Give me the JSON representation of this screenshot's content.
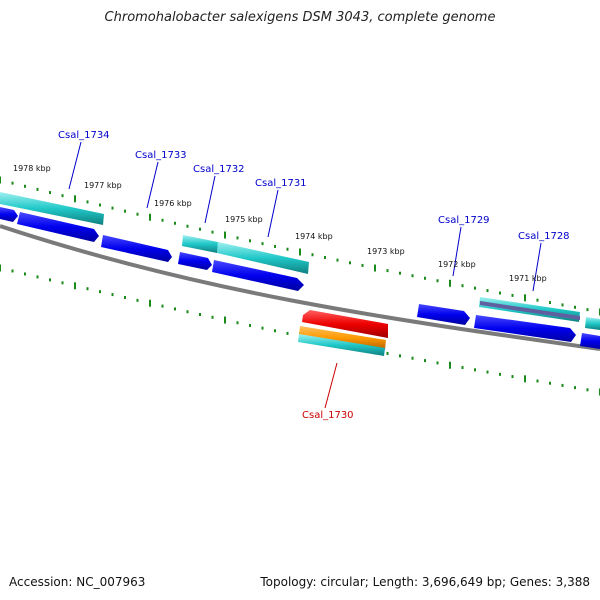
{
  "title": "Chromohalobacter salexigens DSM 3043, complete genome",
  "footer": {
    "accession": "Accession: NC_007963",
    "topology": "Topology: circular; Length: 3,696,649 bp; Genes: 3,388"
  },
  "colors": {
    "backbone": "#808080",
    "cds_forward": "#0000ee",
    "cds_reverse": "#0000ee",
    "gene": "#20c8c8",
    "highlight_cds": "#ee0000",
    "highlight_gene": "#ff9900",
    "tick": "#1a8a1a",
    "label": "#0000cc",
    "label_highlight": "#cc0000"
  },
  "kbp_labels": [
    {
      "text": "1978 kbp",
      "pos": 1978
    },
    {
      "text": "1977 kbp",
      "pos": 1977
    },
    {
      "text": "1976 kbp",
      "pos": 1976
    },
    {
      "text": "1975 kbp",
      "pos": 1975
    },
    {
      "text": "1974 kbp",
      "pos": 1974
    },
    {
      "text": "1973 kbp",
      "pos": 1973
    },
    {
      "text": "1972 kbp",
      "pos": 1972
    },
    {
      "text": "1971 kbp",
      "pos": 1971
    }
  ],
  "gene_labels": [
    {
      "text": "Csal_1734",
      "highlight": false
    },
    {
      "text": "Csal_1733",
      "highlight": false
    },
    {
      "text": "Csal_1732",
      "highlight": false
    },
    {
      "text": "Csal_1731",
      "highlight": false
    },
    {
      "text": "Csal_1729",
      "highlight": false
    },
    {
      "text": "Csal_1728",
      "highlight": false
    },
    {
      "text": "Csal_1730",
      "highlight": true
    }
  ]
}
